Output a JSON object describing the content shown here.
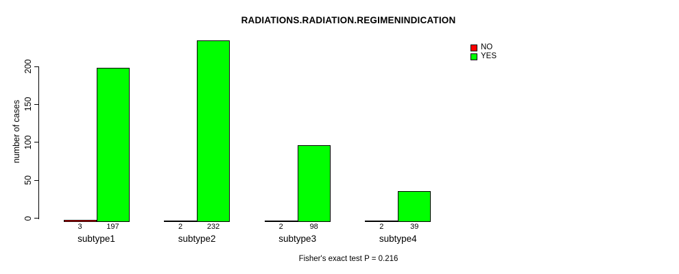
{
  "chart_data": {
    "type": "bar",
    "title": "RADIATIONS.RADIATION.REGIMENINDICATION",
    "ylabel": "number of cases",
    "xlabel": "",
    "categories": [
      "subtype1",
      "subtype2",
      "subtype3",
      "subtype4"
    ],
    "series": [
      {
        "name": "NO",
        "color": "#FF0000",
        "values": [
          3,
          2,
          2,
          2
        ]
      },
      {
        "name": "YES",
        "color": "#00FF00",
        "values": [
          197,
          232,
          98,
          39
        ]
      }
    ],
    "yticks": [
      0,
      50,
      100,
      150,
      200
    ],
    "ylim": [
      0,
      232
    ],
    "grid": false,
    "show_bar_values": true,
    "legend_position": "top-right",
    "footnote": "Fisher's exact test P = 0.216"
  }
}
